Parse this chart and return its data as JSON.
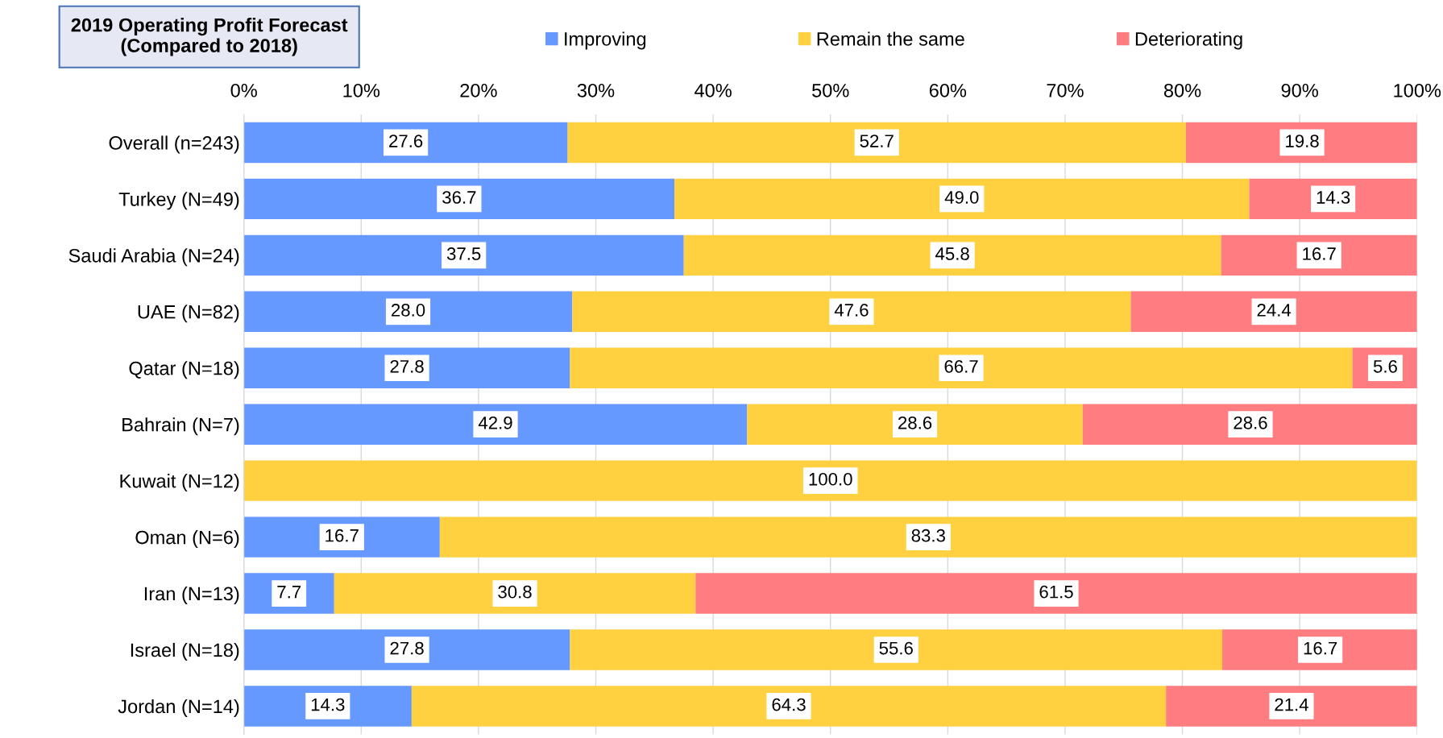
{
  "chart_data": {
    "type": "bar",
    "orientation": "horizontal",
    "stacked": true,
    "title": "2019 Operating Profit Forecast\n(Compared to 2018)",
    "categories": [
      "Overall (n=243)",
      "Turkey (N=49)",
      "Saudi Arabia (N=24)",
      "UAE (N=82)",
      "Qatar (N=18)",
      "Bahrain (N=7)",
      "Kuwait (N=12)",
      "Oman (N=6)",
      "Iran (N=13)",
      "Israel (N=18)",
      "Jordan (N=14)"
    ],
    "series": [
      {
        "name": "Improving",
        "color": "#6699ff",
        "values": [
          27.6,
          36.7,
          37.5,
          28.0,
          27.8,
          42.9,
          0,
          16.7,
          7.7,
          27.8,
          14.3
        ],
        "value_labels": [
          "27.6",
          "36.7",
          "37.5",
          "28.0",
          "27.8",
          "42.9",
          null,
          "16.7",
          "7.7",
          "27.8",
          "14.3"
        ]
      },
      {
        "name": "Remain the same",
        "color": "#ffd040",
        "values": [
          52.7,
          49.0,
          45.8,
          47.6,
          66.7,
          28.6,
          100.0,
          83.3,
          30.8,
          55.6,
          64.3
        ],
        "value_labels": [
          "52.7",
          "49.0",
          "45.8",
          "47.6",
          "66.7",
          "28.6",
          "100.0",
          "83.3",
          "30.8",
          "55.6",
          "64.3"
        ]
      },
      {
        "name": "Deteriorating",
        "color": "#ff7c80",
        "values": [
          19.8,
          14.3,
          16.7,
          24.4,
          5.6,
          28.6,
          0,
          0,
          61.5,
          16.7,
          21.4
        ],
        "value_labels": [
          "19.8",
          "14.3",
          "16.7",
          "24.4",
          "5.6",
          "28.6",
          null,
          null,
          "61.5",
          "16.7",
          "21.4"
        ]
      }
    ],
    "xlim": [
      0,
      100
    ],
    "xticks": [
      {
        "value": 0,
        "label": "0%"
      },
      {
        "value": 10,
        "label": "10%"
      },
      {
        "value": 20,
        "label": "20%"
      },
      {
        "value": 30,
        "label": "30%"
      },
      {
        "value": 40,
        "label": "40%"
      },
      {
        "value": 50,
        "label": "50%"
      },
      {
        "value": 60,
        "label": "60%"
      },
      {
        "value": 70,
        "label": "70%"
      },
      {
        "value": 80,
        "label": "80%"
      },
      {
        "value": 90,
        "label": "90%"
      },
      {
        "value": 100,
        "label": "100%"
      }
    ],
    "grid": "x",
    "legend": "top"
  }
}
